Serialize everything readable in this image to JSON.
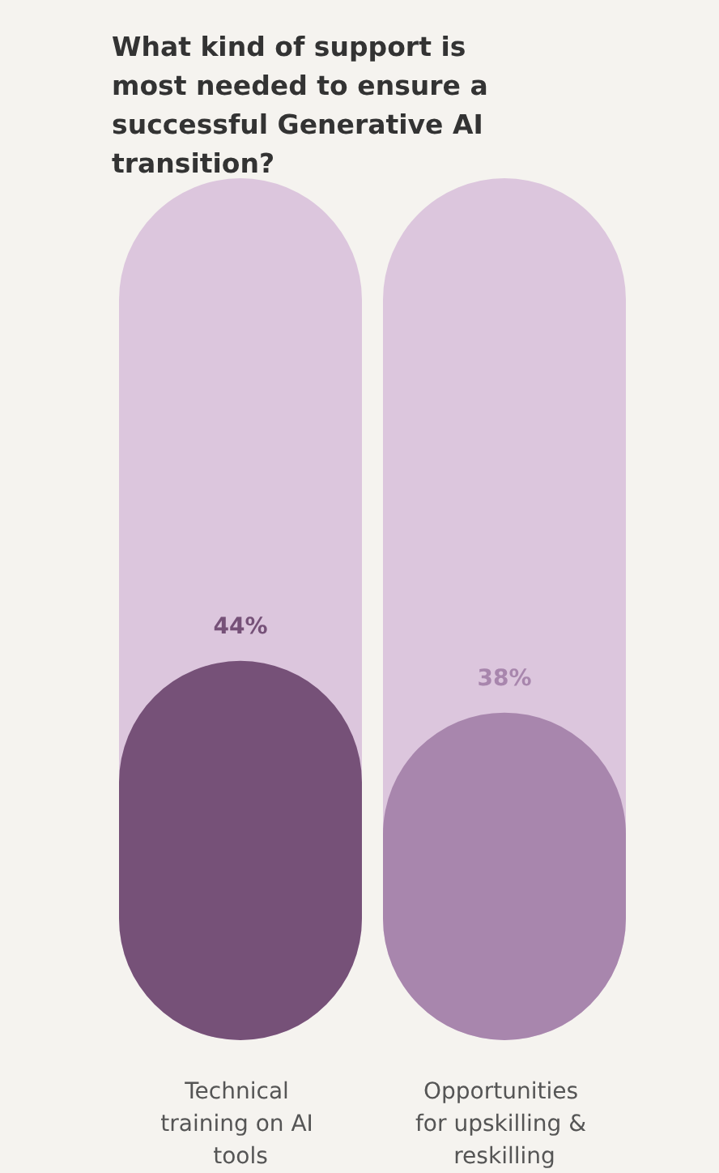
{
  "chart_data": {
    "type": "bar",
    "title": "What kind of support is most needed to ensure a successful Generative AI transition?",
    "categories": [
      "Technical training on AI tools",
      "Opportunities for upskilling & reskilling"
    ],
    "values": [
      44,
      38
    ],
    "colors": [
      "#765178",
      "#a886ad"
    ],
    "value_labels": [
      "44%",
      "38%"
    ],
    "ylim": [
      0,
      100
    ],
    "tick_labels": "x"
  }
}
